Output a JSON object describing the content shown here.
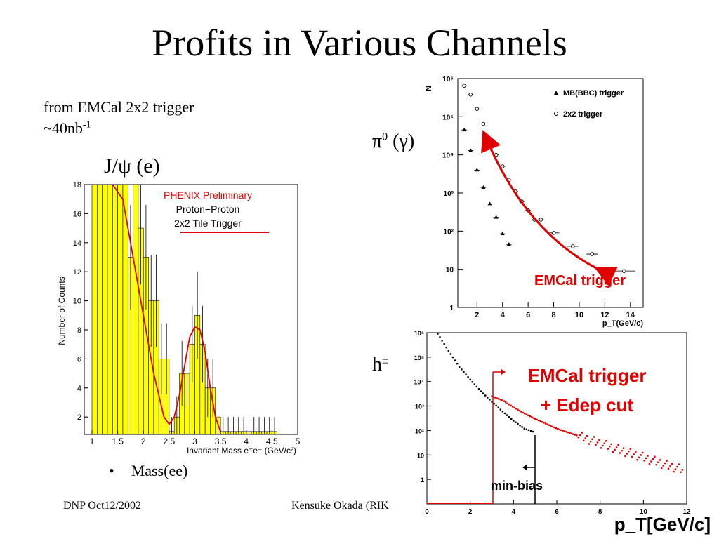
{
  "slide": {
    "title": "Profits in Various Channels",
    "source_line1": "from EMCal 2x2 trigger",
    "source_line2_pre": "~40nb",
    "source_line2_sup": "-1",
    "jpsi_label": "J/ψ (e)",
    "pi0_label_base": "π",
    "pi0_label_sup": "0",
    "pi0_label_rest": " (γ)",
    "hpm_label": "h",
    "hpm_sup": "±",
    "bullet": "Mass(ee)",
    "footer_left": "DNP Oct12/2002",
    "footer_center": "Kensuke Okada (RIK"
  },
  "chart_data": [
    {
      "type": "bar",
      "title": "PHENIX Preliminary",
      "subtitle": [
        "Proton−Proton",
        "2x2 Tile Trigger"
      ],
      "xlabel": "Invariant Mass e⁺e⁻ (GeV/c²)",
      "ylabel": "Number of Counts",
      "xlim": [
        0.85,
        5.0
      ],
      "ylim": [
        0.8,
        18
      ],
      "x_ticks": [
        "1",
        "1.5",
        "2",
        "2.5",
        "3",
        "3.5",
        "4",
        "4.5",
        "5"
      ],
      "y_ticks": [
        "2",
        "4",
        "6",
        "8",
        "10",
        "12",
        "14",
        "16",
        "18"
      ],
      "bin_edges": [
        1.0,
        1.1,
        1.2,
        1.3,
        1.4,
        1.5,
        1.6,
        1.7,
        1.8,
        1.9,
        2.0,
        2.1,
        2.2,
        2.3,
        2.4,
        2.5,
        2.6,
        2.7,
        2.8,
        2.9,
        3.0,
        3.1,
        3.2,
        3.3,
        3.4,
        3.5,
        3.6,
        3.7,
        3.8,
        3.9,
        4.0,
        4.1,
        4.2,
        4.3,
        4.4,
        4.5,
        4.6
      ],
      "histogram_counts": [
        18,
        18,
        18,
        18,
        18,
        18,
        18,
        13,
        18,
        15,
        13,
        10,
        10,
        6,
        6,
        1,
        2,
        5,
        5,
        7,
        9,
        7,
        4,
        4,
        2,
        1,
        1,
        1,
        1,
        1,
        1,
        1,
        1,
        1,
        1,
        1
      ],
      "fit_curve": {
        "x": [
          1.4,
          1.6,
          1.8,
          2.0,
          2.2,
          2.4,
          2.5,
          2.6,
          2.7,
          2.8,
          2.9,
          3.0,
          3.1,
          3.2,
          3.3,
          3.4,
          3.5
        ],
        "y": [
          18,
          17,
          13,
          9,
          5,
          2,
          1.5,
          2,
          3.5,
          5.5,
          7.5,
          8.2,
          8,
          6.5,
          4,
          2,
          1
        ]
      },
      "legend_color": "#e00000",
      "fill_color": "#ffff00"
    },
    {
      "type": "scatter",
      "ylabel": "N",
      "xlabel": "p_T(GeV/c)",
      "log_y": true,
      "xlim": [
        0.5,
        15
      ],
      "ylim": [
        1,
        1000000
      ],
      "x_ticks": [
        "2",
        "4",
        "6",
        "8",
        "10",
        "12",
        "14"
      ],
      "y_ticks": [
        "1",
        "10",
        "10²",
        "10³",
        "10⁴",
        "10⁵",
        "10⁶"
      ],
      "series": [
        {
          "name": "MB(BBC) trigger",
          "marker": "triangle",
          "x": [
            1.0,
            1.5,
            2.0,
            2.5,
            3.0,
            3.5,
            4.0,
            4.5
          ],
          "y": [
            45000,
            13000,
            4000,
            1400,
            520,
            230,
            85,
            45
          ]
        },
        {
          "name": "2x2 trigger",
          "marker": "circle",
          "x": [
            1.0,
            1.5,
            2.0,
            2.5,
            3.0,
            3.5,
            4.0,
            4.5,
            5.0,
            5.5,
            6.0,
            6.5,
            7.0,
            8.0,
            9.5,
            11.0,
            13.5
          ],
          "y": [
            650000,
            380000,
            160000,
            65000,
            25000,
            10000,
            5000,
            2200,
            1100,
            600,
            350,
            200,
            200,
            90,
            40,
            25,
            9
          ]
        }
      ],
      "annotation": "EMCal trigger"
    },
    {
      "type": "scatter",
      "xlabel": "p_T[GeV/c]",
      "log_y": true,
      "xlim": [
        0,
        12
      ],
      "ylim": [
        0.1,
        1000000
      ],
      "x_ticks": [
        "0",
        "2",
        "4",
        "6",
        "8",
        "10",
        "12"
      ],
      "y_ticks": [
        "1",
        "10",
        "10²",
        "10³",
        "10⁴",
        "10⁵",
        "10⁶"
      ],
      "annotations": [
        "EMCal trigger",
        "+ Edep cut",
        "min-bias"
      ],
      "series": [
        {
          "name": "min-bias",
          "color": "#000000",
          "x": [
            0.5,
            1.0,
            1.5,
            2.0,
            2.5,
            3.0,
            3.5,
            4.0,
            4.5,
            4.9
          ],
          "y": [
            900000,
            180000,
            40000,
            12000,
            4000,
            1500,
            600,
            250,
            120,
            90
          ]
        },
        {
          "name": "EMCal trigger + Edep cut",
          "color": "#e00000",
          "x": [
            3.0,
            3.5,
            4.0,
            4.5,
            5.0,
            6.0,
            7.0,
            8.0,
            9.0,
            10.0,
            11.0,
            11.8
          ],
          "y": [
            2500,
            1700,
            900,
            500,
            300,
            120,
            60,
            30,
            15,
            8,
            4,
            2.5
          ]
        }
      ]
    }
  ]
}
